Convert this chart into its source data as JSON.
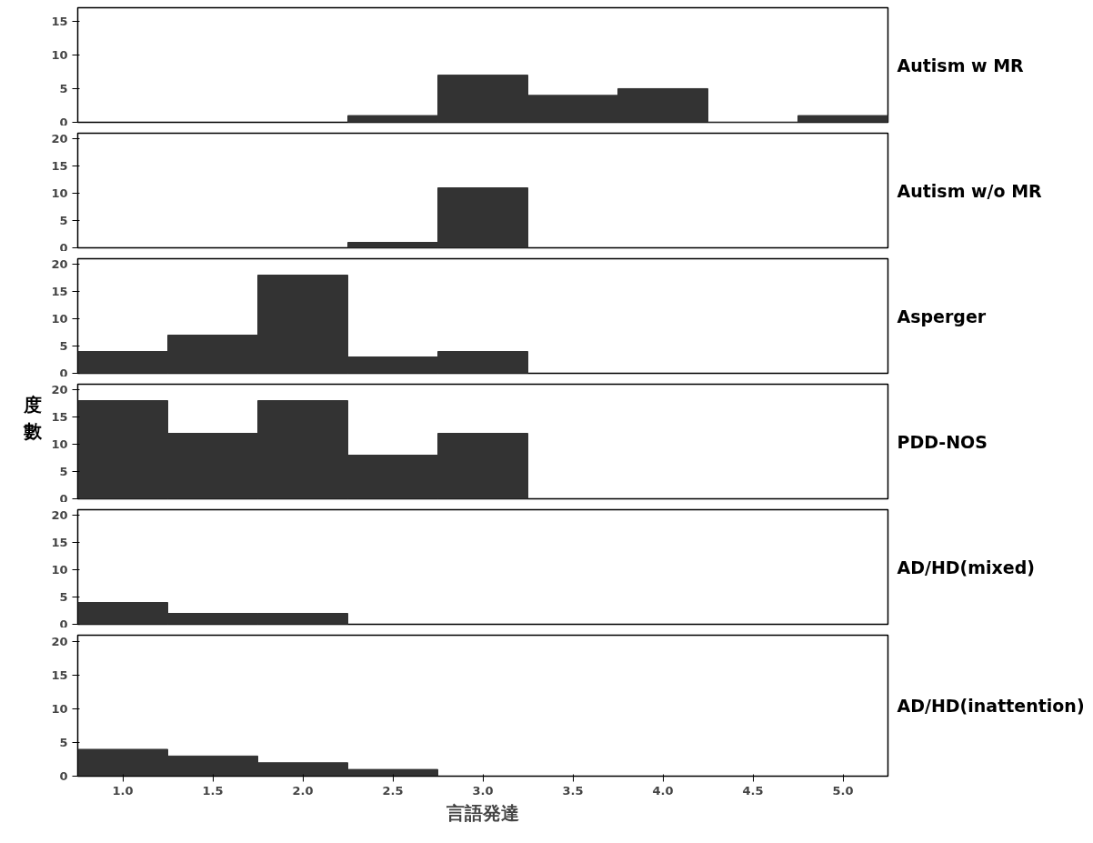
{
  "chart_data": [
    {
      "type": "histogram",
      "title": "Autism w MR",
      "bins": [
        2.25,
        2.75,
        3.25,
        3.75,
        4.25,
        4.75,
        5.25
      ],
      "values": [
        1,
        7,
        4,
        5,
        0,
        1
      ],
      "color": "#333333",
      "xlim": [
        0.75,
        5.25
      ],
      "ylim": [
        0,
        17
      ],
      "yticks": [
        0,
        5,
        10,
        15
      ],
      "tick_labels": "y",
      "grid": false
    },
    {
      "type": "histogram",
      "title": "Autism w/o MR",
      "bins": [
        2.25,
        2.75,
        3.25
      ],
      "values": [
        1,
        11
      ],
      "color": "#333333",
      "xlim": [
        0.75,
        5.25
      ],
      "ylim": [
        0,
        21
      ],
      "yticks": [
        0,
        5,
        10,
        15,
        20
      ],
      "tick_labels": "y",
      "grid": false
    },
    {
      "type": "histogram",
      "title": "Asperger",
      "bins": [
        0.75,
        1.25,
        1.75,
        2.25,
        2.75,
        3.25
      ],
      "values": [
        4,
        7,
        18,
        3,
        4
      ],
      "color": "#333333",
      "xlim": [
        0.75,
        5.25
      ],
      "ylim": [
        0,
        21
      ],
      "yticks": [
        0,
        5,
        10,
        15,
        20
      ],
      "tick_labels": "y",
      "grid": false
    },
    {
      "type": "histogram",
      "title": "PDD-NOS",
      "ylabel": "度數",
      "bins": [
        0.75,
        1.25,
        1.75,
        2.25,
        2.75,
        3.25
      ],
      "values": [
        18,
        12,
        18,
        8,
        12
      ],
      "color": "#333333",
      "xlim": [
        0.75,
        5.25
      ],
      "ylim": [
        0,
        21
      ],
      "yticks": [
        0,
        5,
        10,
        15,
        20
      ],
      "tick_labels": "y",
      "grid": false
    },
    {
      "type": "histogram",
      "title": "AD/HD(mixed)",
      "bins": [
        0.75,
        1.25,
        1.75,
        2.25
      ],
      "values": [
        4,
        2,
        2
      ],
      "color": "#333333",
      "xlim": [
        0.75,
        5.25
      ],
      "ylim": [
        0,
        21
      ],
      "yticks": [
        0,
        5,
        10,
        15,
        20
      ],
      "tick_labels": "y",
      "grid": false
    },
    {
      "type": "histogram",
      "title": "AD/HD(inattention)",
      "xlabel": "言語発達",
      "bins": [
        0.75,
        1.25,
        1.75,
        2.25,
        2.75
      ],
      "values": [
        4,
        3,
        2,
        1
      ],
      "color": "#333333",
      "xlim": [
        0.75,
        5.25
      ],
      "ylim": [
        0,
        21
      ],
      "yticks": [
        0,
        5,
        10,
        15,
        20
      ],
      "xticks": [
        {
          "value": 1.0,
          "label": "1.0"
        },
        {
          "value": 1.5,
          "label": "1.5"
        },
        {
          "value": 2.0,
          "label": "2.0"
        },
        {
          "value": 2.5,
          "label": "2.5"
        },
        {
          "value": 3.0,
          "label": "3.0"
        },
        {
          "value": 3.5,
          "label": "3.5"
        },
        {
          "value": 4.0,
          "label": "4.0"
        },
        {
          "value": 4.5,
          "label": "4.5"
        },
        {
          "value": 5.0,
          "label": "5.0"
        }
      ],
      "grid": false
    }
  ]
}
